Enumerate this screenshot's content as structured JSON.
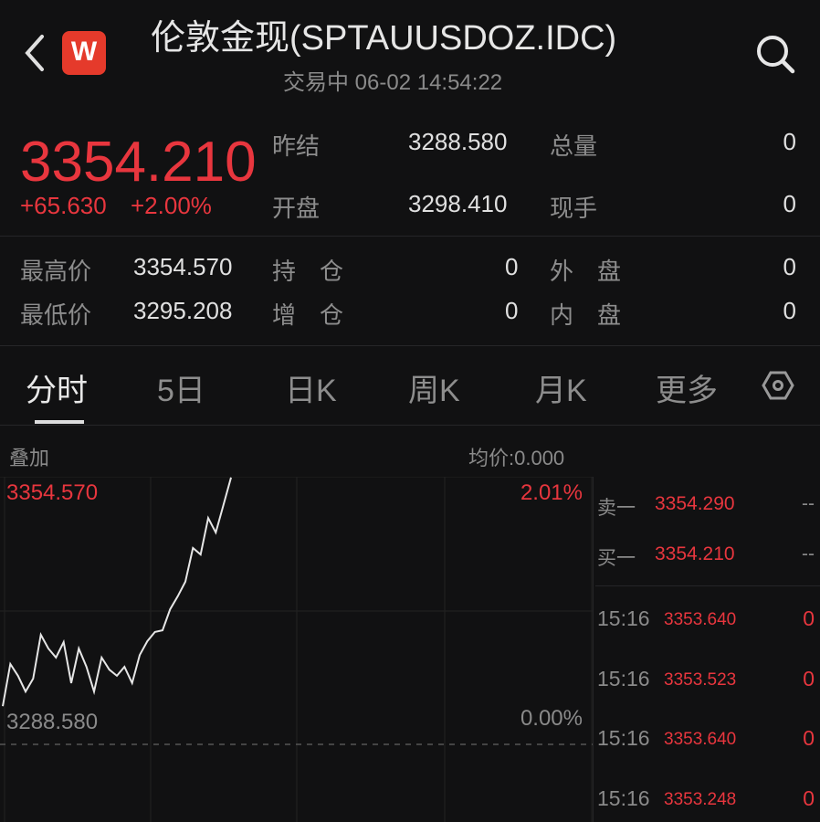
{
  "header": {
    "title": "伦敦金现(SPTAUUSDOZ.IDC)",
    "status": "交易中 06-02 14:54:22",
    "logo_letter": "W",
    "brand_color": "#e53a2b"
  },
  "quote": {
    "price": "3354.210",
    "change": "+65.630",
    "change_pct": "+2.00%",
    "accent_color": "#e8363e"
  },
  "stats": {
    "prev_settle_label": "昨结",
    "prev_settle": "3288.580",
    "volume_label": "总量",
    "volume": "0",
    "open_label": "开盘",
    "open": "3298.410",
    "last_vol_label": "现手",
    "last_vol": "0",
    "high_label": "最高价",
    "high": "3354.570",
    "oi_label": "持　仓",
    "oi": "0",
    "outer_label": "外　盘",
    "outer": "0",
    "low_label": "最低价",
    "low": "3295.208",
    "oi_chg_label": "增　仓",
    "oi_chg": "0",
    "inner_label": "内　盘",
    "inner": "0"
  },
  "tabs": [
    {
      "label": "分时",
      "active": true
    },
    {
      "label": "5日"
    },
    {
      "label": "日K"
    },
    {
      "label": "周K"
    },
    {
      "label": "月K"
    },
    {
      "label": "更多"
    }
  ],
  "chart_bar": {
    "overlay": "叠加",
    "avg": "均价:0.000"
  },
  "chart_data": {
    "type": "line",
    "y_top_label": "3354.570",
    "y_bottom_label": "3288.580",
    "pct_top_label": "2.01%",
    "pct_bottom_label": "0.00%",
    "ylim": [
      3288.58,
      3354.57
    ],
    "reference": 3288.58,
    "values": [
      3298.0,
      3308.4,
      3305.5,
      3301.6,
      3304.8,
      3315.6,
      3312.2,
      3310.0,
      3313.8,
      3303.7,
      3312.2,
      3307.7,
      3301.6,
      3310.0,
      3307.0,
      3305.5,
      3307.7,
      3303.7,
      3310.6,
      3314.0,
      3316.3,
      3316.7,
      3321.9,
      3325.1,
      3328.7,
      3337.0,
      3335.4,
      3344.4,
      3340.8,
      3347.6,
      3354.4
    ]
  },
  "orderbook": [
    {
      "label": "卖一",
      "price": "3354.290",
      "qty": "--"
    },
    {
      "label": "买一",
      "price": "3354.210",
      "qty": "--"
    }
  ],
  "trades": [
    {
      "time": "15:16",
      "price": "3353.640",
      "qty": "0"
    },
    {
      "time": "15:16",
      "price": "3353.523",
      "qty": "0"
    },
    {
      "time": "15:16",
      "price": "3353.640",
      "qty": "0"
    },
    {
      "time": "15:16",
      "price": "3353.248",
      "qty": "0"
    }
  ]
}
